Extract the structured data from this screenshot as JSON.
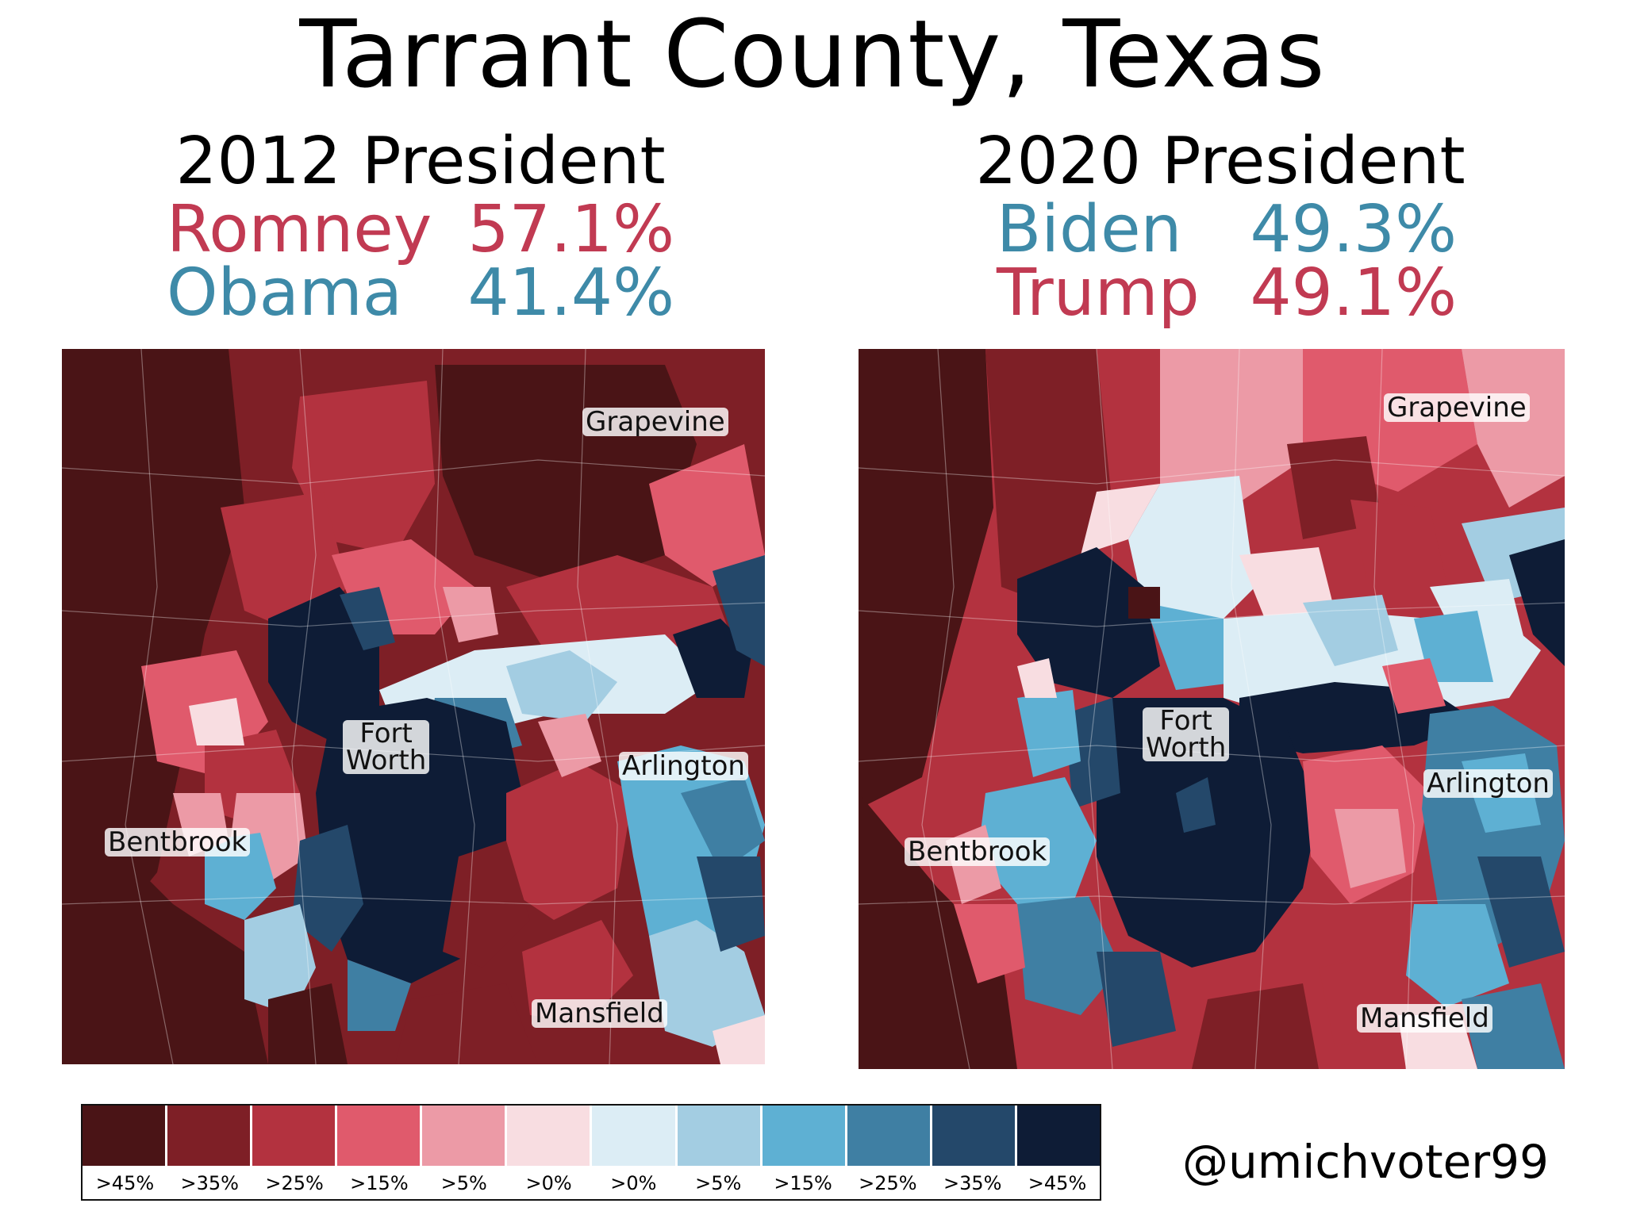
{
  "title": "Tarrant County, Texas",
  "left": {
    "year_label": "2012 President",
    "first": {
      "name": "Romney",
      "pct": "57.1%",
      "party": "rep"
    },
    "second": {
      "name": "Obama",
      "pct": "41.4%",
      "party": "dem"
    },
    "places": {
      "grapevine": "Grapevine",
      "fort": "Fort",
      "worth": "Worth",
      "arlington": "Arlington",
      "bentbrook": "Bentbrook",
      "mansfield": "Mansfield"
    }
  },
  "right": {
    "year_label": "2020 President",
    "first": {
      "name": "Biden",
      "pct": "49.3%",
      "party": "dem"
    },
    "second": {
      "name": "Trump",
      "pct": "49.1%",
      "party": "rep"
    },
    "places": {
      "grapevine": "Grapevine",
      "fort": "Fort",
      "worth": "Worth",
      "arlington": "Arlington",
      "bentbrook": "Bentbrook",
      "mansfield": "Mansfield"
    }
  },
  "legend": {
    "items": [
      {
        "label": ">45%",
        "color": "#4a1416"
      },
      {
        "label": ">35%",
        "color": "#7e1f26"
      },
      {
        "label": ">25%",
        "color": "#b3323f"
      },
      {
        "label": ">15%",
        "color": "#e05a6c"
      },
      {
        "label": ">5%",
        "color": "#ec9aa6"
      },
      {
        "label": ">0%",
        "color": "#f8dde1"
      },
      {
        "label": ">0%",
        "color": "#dcedf5"
      },
      {
        "label": ">5%",
        "color": "#a3cde2"
      },
      {
        "label": ">15%",
        "color": "#5eb0d3"
      },
      {
        "label": ">25%",
        "color": "#3f7fa3"
      },
      {
        "label": ">35%",
        "color": "#24486a"
      },
      {
        "label": ">45%",
        "color": "#0e1c36"
      }
    ]
  },
  "handle": "@umichvoter99"
}
